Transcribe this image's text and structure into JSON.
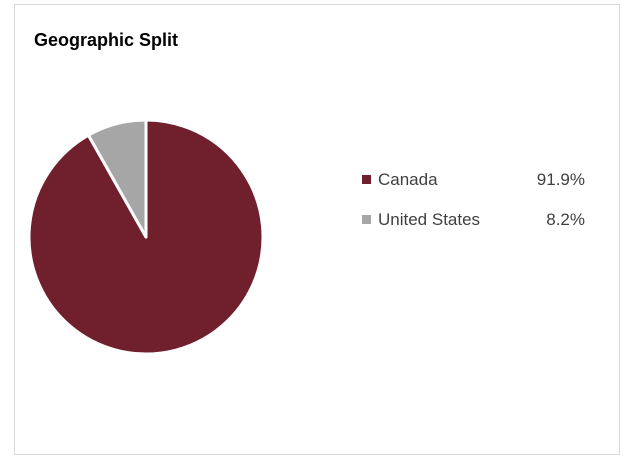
{
  "chart_data": {
    "type": "pie",
    "title": "Geographic Split",
    "series": [
      {
        "name": "Canada",
        "value": 91.9,
        "label": "91.9%",
        "color": "#70202d"
      },
      {
        "name": "United States",
        "value": 8.2,
        "label": "8.2%",
        "color": "#a6a6a6"
      }
    ],
    "legend_position": "right",
    "slice_border_color": "#ffffff"
  }
}
